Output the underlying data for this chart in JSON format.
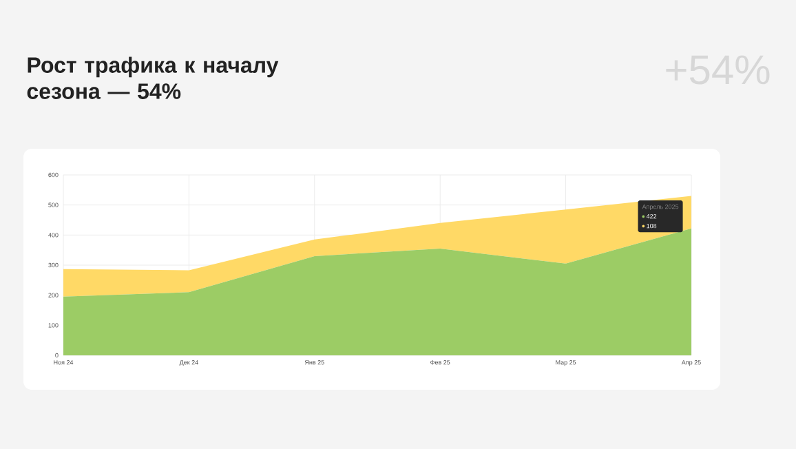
{
  "chart_data": {
    "type": "area",
    "title": "Рост трафика к началу сезона — 54%",
    "stacked": true,
    "grid": true,
    "categories": [
      "Ноя 24",
      "Дек 24",
      "Янв 25",
      "Фев 25",
      "Мар 25",
      "Апр 25"
    ],
    "series": [
      {
        "color": "#9ccc65",
        "values": [
          195,
          210,
          330,
          355,
          305,
          422
        ]
      },
      {
        "color": "#ffd966",
        "values": [
          92,
          73,
          55,
          85,
          180,
          108
        ]
      }
    ],
    "ylim": [
      0,
      600
    ],
    "yticks": [
      0,
      100,
      200,
      300,
      400,
      500,
      600
    ],
    "annotations": [
      "+54%",
      {
        "text": "Апрель 2025",
        "x": "Апр 25",
        "y": 530
      },
      "422",
      "108"
    ]
  }
}
